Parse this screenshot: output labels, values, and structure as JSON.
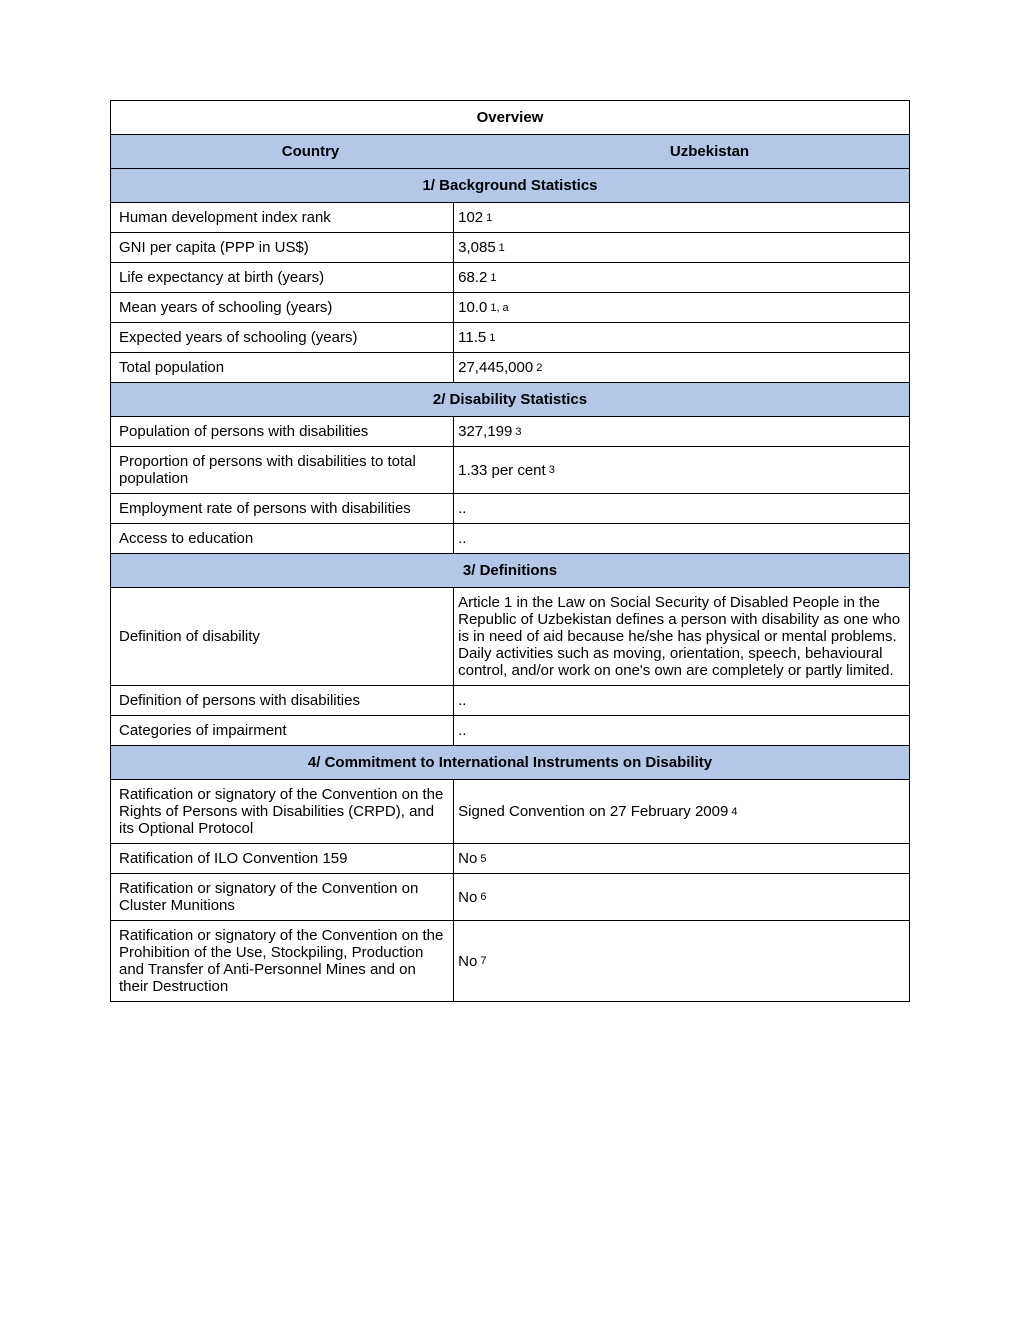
{
  "title": "Overview",
  "countryLabel": "Country",
  "countryValue": "Uzbekistan",
  "sections": [
    {
      "header": "1/ Background Statistics",
      "rows": [
        {
          "label": "Human development index rank",
          "value": "102",
          "ref": "1"
        },
        {
          "label": "GNI per capita (PPP in US$)",
          "value": "3,085",
          "ref": "1"
        },
        {
          "label": "Life expectancy at birth (years)",
          "value": "68.2",
          "ref": "1"
        },
        {
          "label": "Mean years of schooling (years)",
          "value": "10.0",
          "ref": "1, a"
        },
        {
          "label": "Expected years of schooling (years)",
          "value": "11.5",
          "ref": "1"
        },
        {
          "label": "Total population",
          "value": "27,445,000",
          "ref": "2"
        }
      ]
    },
    {
      "header": "2/ Disability Statistics",
      "rows": [
        {
          "label": "Population of persons with disabilities",
          "value": "327,199",
          "ref": "3"
        },
        {
          "label": "Proportion of persons with disabilities to total population",
          "value": "1.33 per cent",
          "ref": "3"
        },
        {
          "label": "Employment rate of persons with disabilities",
          "value": "..",
          "ref": ""
        },
        {
          "label": "Access to education",
          "value": "..",
          "ref": ""
        }
      ]
    },
    {
      "header": "3/ Definitions",
      "rows": [
        {
          "label": "Definition of disability",
          "value": "Article 1 in the Law on Social Security of Disabled People in the Republic of Uzbekistan defines a person with disability as one who is in need of aid because he/she has physical or mental problems. Daily activities such as moving, orientation, speech, behavioural control, and/or work on one's own are completely or partly limited.",
          "ref": ""
        },
        {
          "label": "Definition of persons with disabilities",
          "value": "..",
          "ref": ""
        },
        {
          "label": "Categories of impairment",
          "value": "..",
          "ref": ""
        }
      ]
    },
    {
      "header": "4/ Commitment to International Instruments on Disability",
      "rows": [
        {
          "label": "Ratification or signatory of the Convention on the Rights of Persons with Disabilities (CRPD), and its Optional Protocol",
          "value": "Signed Convention on 27 February 2009",
          "ref": "4"
        },
        {
          "label": "Ratification of ILO Convention 159",
          "value": "No",
          "ref": "5"
        },
        {
          "label": "Ratification or signatory of the Convention on Cluster Munitions",
          "value": "No",
          "ref": "6"
        },
        {
          "label": "Ratification or signatory of the Convention on the Prohibition of the Use, Stockpiling, Production and Transfer of Anti-Personnel Mines and on their Destruction",
          "value": "No",
          "ref": "7"
        }
      ]
    }
  ]
}
